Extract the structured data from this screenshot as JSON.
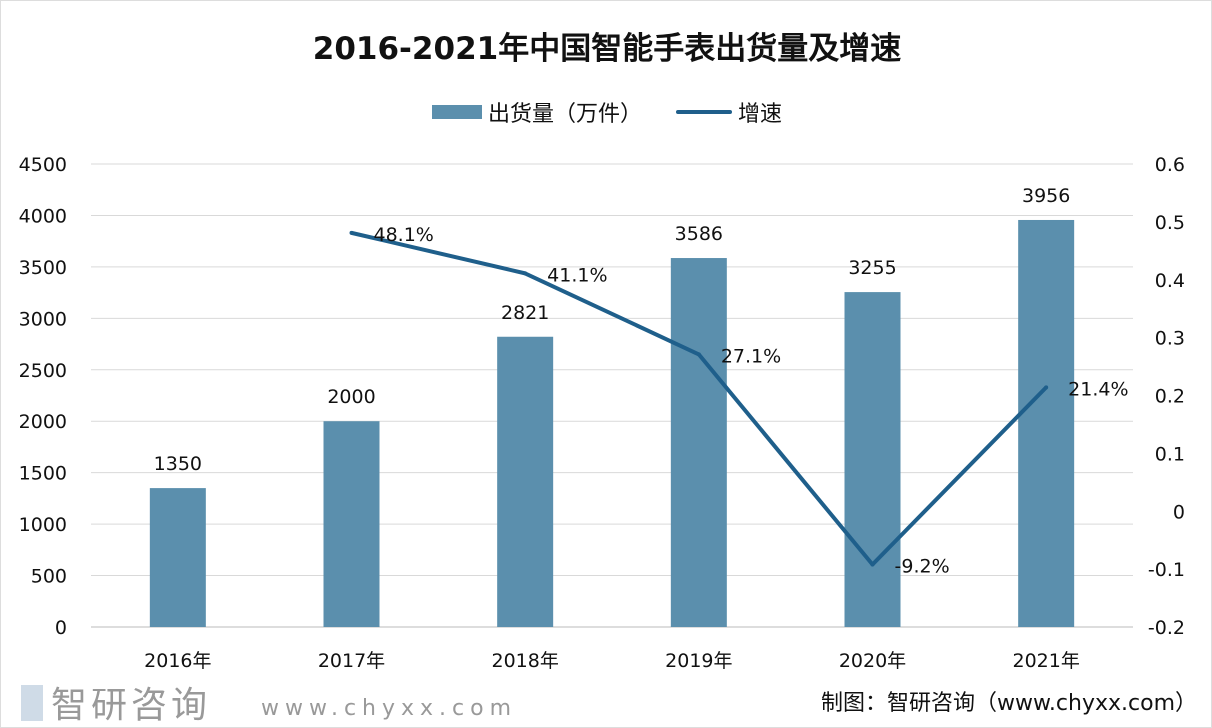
{
  "chart_data": {
    "type": "bar+line",
    "title": "2016-2021年中国智能手表出货量及增速",
    "categories": [
      "2016年",
      "2017年",
      "2018年",
      "2019年",
      "2020年",
      "2021年"
    ],
    "series": [
      {
        "name": "出货量（万件）",
        "type": "bar",
        "axis": "left",
        "values": [
          1350,
          2000,
          2821,
          3586,
          3255,
          3956
        ],
        "labels": [
          "1350",
          "2000",
          "2821",
          "3586",
          "3255",
          "3956"
        ],
        "color": "#5b8fad"
      },
      {
        "name": "增速",
        "type": "line",
        "axis": "right",
        "values": [
          null,
          0.481,
          0.411,
          0.271,
          -0.092,
          0.214
        ],
        "labels": [
          "",
          "48.1%",
          "41.1%",
          "27.1%",
          "-9.2%",
          "21.4%"
        ],
        "color": "#1f5f8b"
      }
    ],
    "y_left": {
      "range": [
        0,
        4500
      ],
      "ticks": [
        "0",
        "500",
        "1000",
        "1500",
        "2000",
        "2500",
        "3000",
        "3500",
        "4000",
        "4500"
      ]
    },
    "y_right": {
      "range": [
        -0.2,
        0.6
      ],
      "ticks": [
        "-0.2",
        "-0.1",
        "0",
        "0.1",
        "0.2",
        "0.3",
        "0.4",
        "0.5",
        "0.6"
      ]
    },
    "grid": true,
    "legend": "top"
  },
  "watermark": {
    "name": "智研咨询",
    "url": "www.chyxx.com"
  },
  "source": "制图：智研咨询（www.chyxx.com）"
}
